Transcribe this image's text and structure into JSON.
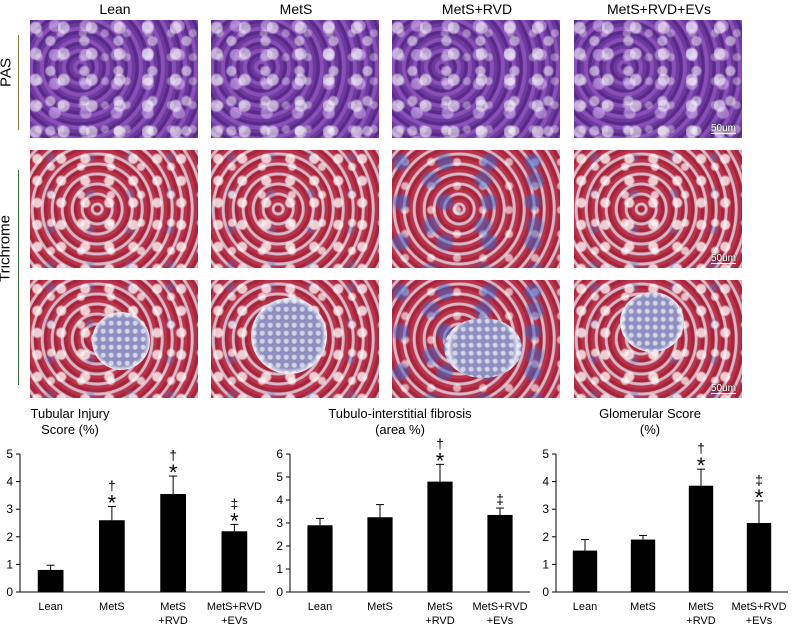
{
  "columns": [
    "Lean",
    "MetS",
    "MetS+RVD",
    "MetS+RVD+EVs"
  ],
  "rows": {
    "pas": "PAS",
    "trichrome": "Trichrome"
  },
  "scale_label": "50um",
  "colors": {
    "bar": "#000000",
    "pas_line": "#8c7a3a",
    "tri_line": "#3a6a3a"
  },
  "chart_data": [
    {
      "type": "bar",
      "title": "Tubular Injury\nScore (%)",
      "categories": [
        "Lean",
        "MetS",
        "MetS\n+RVD",
        "MetS+RVD\n+EVs"
      ],
      "values": [
        0.8,
        2.6,
        3.55,
        2.2
      ],
      "errors": [
        0.17,
        0.5,
        0.65,
        0.25
      ],
      "annotations": [
        "",
        "†\n*",
        "†\n*",
        "‡\n*"
      ],
      "ylim": [
        0,
        5
      ],
      "yticks": [
        0,
        1,
        2,
        3,
        4,
        5
      ]
    },
    {
      "type": "bar",
      "title": "Tubulo-interstitial fibrosis\n(area %)",
      "categories": [
        "Lean",
        "MetS",
        "MetS\n+RVD",
        "MetS+RVD\n+EVs"
      ],
      "values": [
        2.9,
        3.25,
        4.8,
        3.35
      ],
      "errors": [
        0.3,
        0.55,
        0.75,
        0.3
      ],
      "annotations": [
        "",
        "",
        "†\n*",
        "‡"
      ],
      "ylim": [
        0,
        6
      ],
      "yticks": [
        0,
        1,
        2,
        3,
        4,
        5,
        6
      ]
    },
    {
      "type": "bar",
      "title": "Glomerular Score\n(%)",
      "categories": [
        "Lean",
        "MetS",
        "MetS\n+RVD",
        "MetS+RVD\n+EVs"
      ],
      "values": [
        1.5,
        1.9,
        3.85,
        2.5
      ],
      "errors": [
        0.4,
        0.15,
        0.6,
        0.8
      ],
      "annotations": [
        "",
        "",
        "†\n*",
        "‡\n*"
      ],
      "ylim": [
        0,
        5
      ],
      "yticks": [
        0,
        1,
        2,
        3,
        4,
        5
      ]
    }
  ]
}
